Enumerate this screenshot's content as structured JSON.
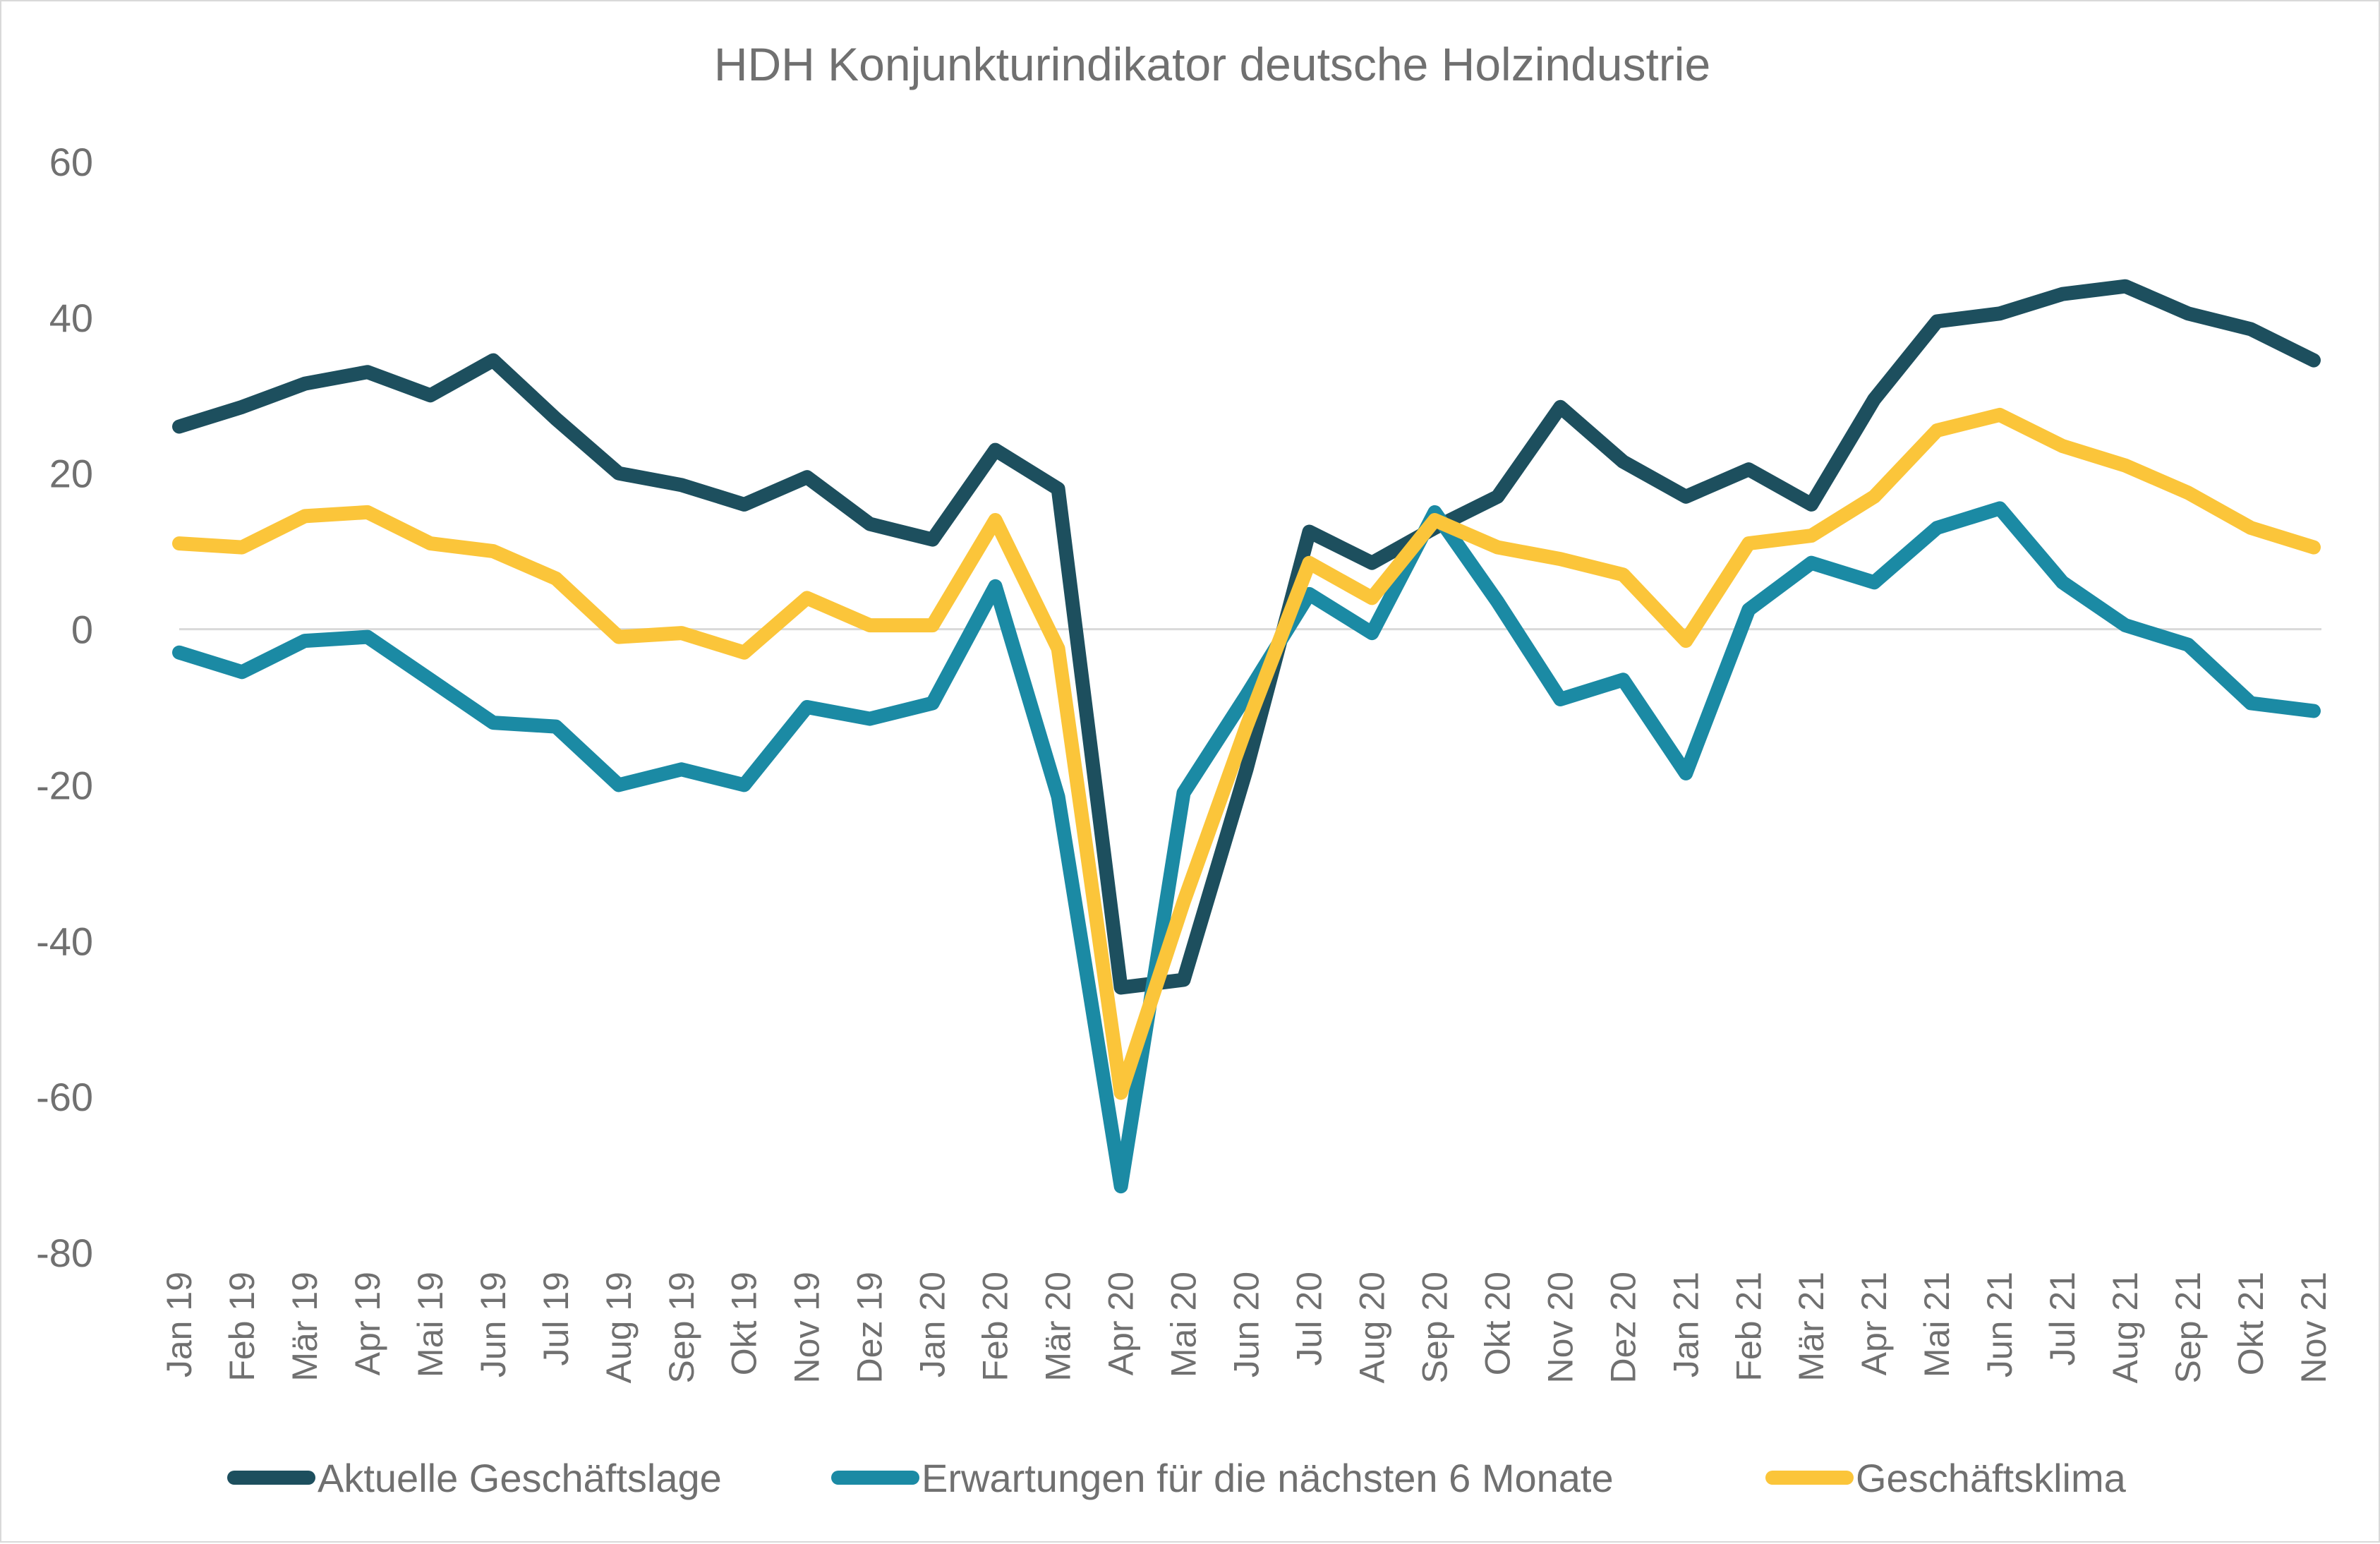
{
  "chart_data": {
    "type": "line",
    "title": "HDH Konjunkturindikator deutsche Holzindustrie",
    "xlabel": "",
    "ylabel": "",
    "ylim": [
      -80,
      60
    ],
    "yticks": [
      60,
      40,
      20,
      0,
      -20,
      -40,
      -60,
      -80
    ],
    "grid": false,
    "zero_line": true,
    "legend_position": "bottom",
    "categories": [
      "Jan 19",
      "Feb 19",
      "Mär 19",
      "Apr 19",
      "Mai 19",
      "Jun 19",
      "Jul 19",
      "Aug 19",
      "Sep 19",
      "Okt 19",
      "Nov 19",
      "Dez 19",
      "Jan 20",
      "Feb 20",
      "Mär 20",
      "Apr 20",
      "Mai 20",
      "Jun 20",
      "Jul 20",
      "Aug 20",
      "Sep 20",
      "Okt 20",
      "Nov 20",
      "Dez 20",
      "Jan 21",
      "Feb 21",
      "Mär 21",
      "Apr 21",
      "Mai 21",
      "Jun 21",
      "Jul 21",
      "Aug 21",
      "Sep 21",
      "Okt 21",
      "Nov 21"
    ],
    "series": [
      {
        "name": "Aktuelle Geschäftslage",
        "color": "#1d4f5e",
        "values": [
          26,
          28.5,
          31.5,
          33,
          30,
          34.5,
          27,
          20,
          18.5,
          16,
          19.5,
          13.5,
          11.5,
          23,
          18,
          -46,
          -45,
          -18,
          12.5,
          8.5,
          13,
          17,
          28.5,
          21.5,
          17,
          20.5,
          16,
          29.5,
          39.5,
          40.5,
          43,
          44,
          40.5,
          38.5,
          34.5
        ]
      },
      {
        "name": "Erwartungen für die nächsten 6 Monate",
        "color": "#1b8aa4",
        "values": [
          -3,
          -5.5,
          -1.5,
          -1,
          -6.5,
          -12,
          -12.5,
          -20,
          -18,
          -20,
          -10,
          -11.5,
          -9.5,
          5.5,
          -21.5,
          -71.5,
          -21,
          -8.5,
          4.5,
          -0.5,
          15,
          3.5,
          -9,
          -6.5,
          -18.5,
          2.5,
          8.5,
          6,
          13,
          15.5,
          6,
          0.5,
          -2,
          -9.5,
          -10.5
        ]
      },
      {
        "name": "Geschäftsklima",
        "color": "#fbc53a",
        "values": [
          11,
          10.5,
          14.5,
          15,
          11,
          10,
          6.5,
          -1,
          -0.5,
          -3,
          4,
          0.5,
          0.5,
          14,
          -2.5,
          -59.5,
          -35,
          -12.5,
          8.5,
          4,
          14,
          10.5,
          9,
          7,
          -1.5,
          11,
          12,
          17,
          25.5,
          27.5,
          23.5,
          21,
          17.5,
          13,
          10.5
        ]
      }
    ]
  }
}
